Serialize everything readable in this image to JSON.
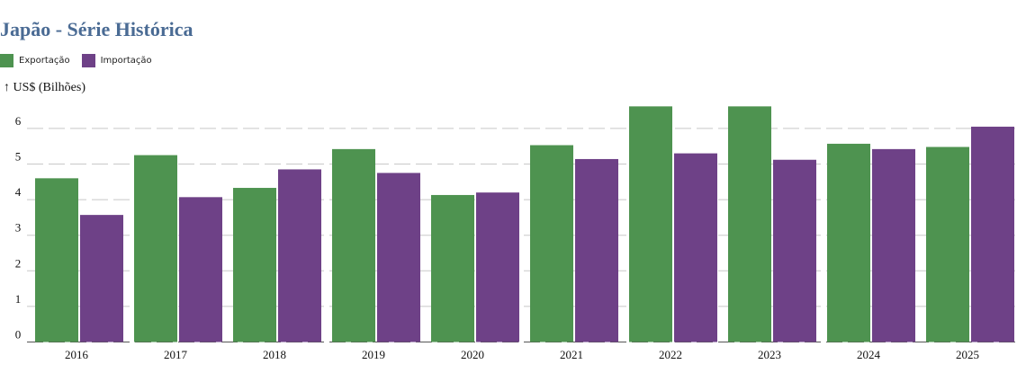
{
  "chart_data": {
    "type": "bar",
    "title": "Japão - Série Histórica",
    "ylabel": "↑ US$ (Bilhões)",
    "xlabel": "",
    "categories": [
      "2016",
      "2017",
      "2018",
      "2019",
      "2020",
      "2021",
      "2022",
      "2023",
      "2024",
      "2025"
    ],
    "series": [
      {
        "name": "Exportação",
        "color": "#4e9350",
        "values": [
          4.6,
          5.25,
          4.33,
          5.42,
          4.13,
          5.53,
          6.62,
          6.62,
          5.57,
          5.48
        ]
      },
      {
        "name": "Importação",
        "color": "#6e4187",
        "values": [
          3.57,
          4.07,
          4.85,
          4.75,
          4.2,
          5.14,
          5.3,
          5.12,
          5.42,
          6.05
        ]
      }
    ],
    "ylim": [
      0,
      6.7
    ],
    "yticks": [
      0,
      1,
      2,
      3,
      4,
      5,
      6
    ],
    "grid": true,
    "grid_style": "dashed",
    "legend_position": "top-left"
  }
}
